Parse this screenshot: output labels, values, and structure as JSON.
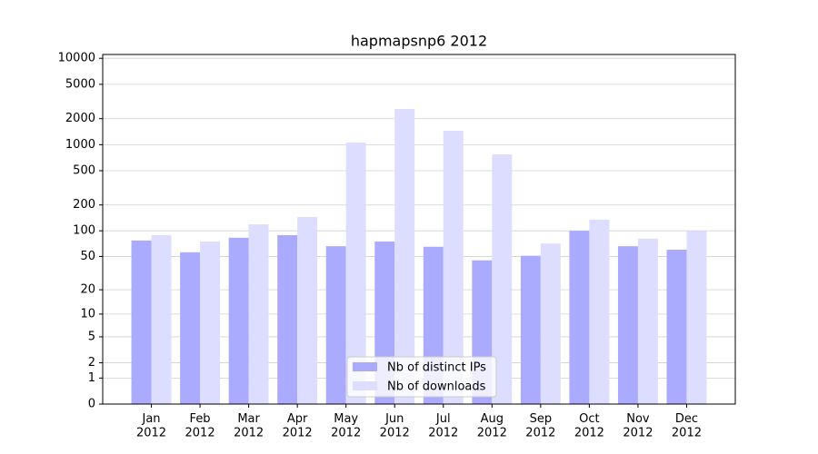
{
  "chart_data": {
    "type": "bar",
    "title": "hapmapsnp6 2012",
    "categories": [
      "Jan\n2012",
      "Feb\n2012",
      "Mar\n2012",
      "Apr\n2012",
      "May\n2012",
      "Jun\n2012",
      "Jul\n2012",
      "Aug\n2012",
      "Sep\n2012",
      "Oct\n2012",
      "Nov\n2012",
      "Dec\n2012"
    ],
    "series": [
      {
        "name": "Nb of distinct IPs",
        "color": "#aaaaff",
        "values": [
          77,
          56,
          83,
          89,
          66,
          75,
          65,
          45,
          51,
          100,
          66,
          60
        ]
      },
      {
        "name": "Nb of downloads",
        "color": "#ddddff",
        "values": [
          89,
          75,
          119,
          145,
          1058,
          2590,
          1450,
          773,
          71,
          135,
          81,
          100
        ]
      }
    ],
    "yscale": "log1p",
    "ylim": [
      0,
      11070
    ],
    "yticks": [
      0,
      1,
      2,
      5,
      10,
      20,
      50,
      100,
      200,
      500,
      1000,
      2000,
      5000,
      10000
    ],
    "grid": true,
    "legend": "lower center"
  }
}
